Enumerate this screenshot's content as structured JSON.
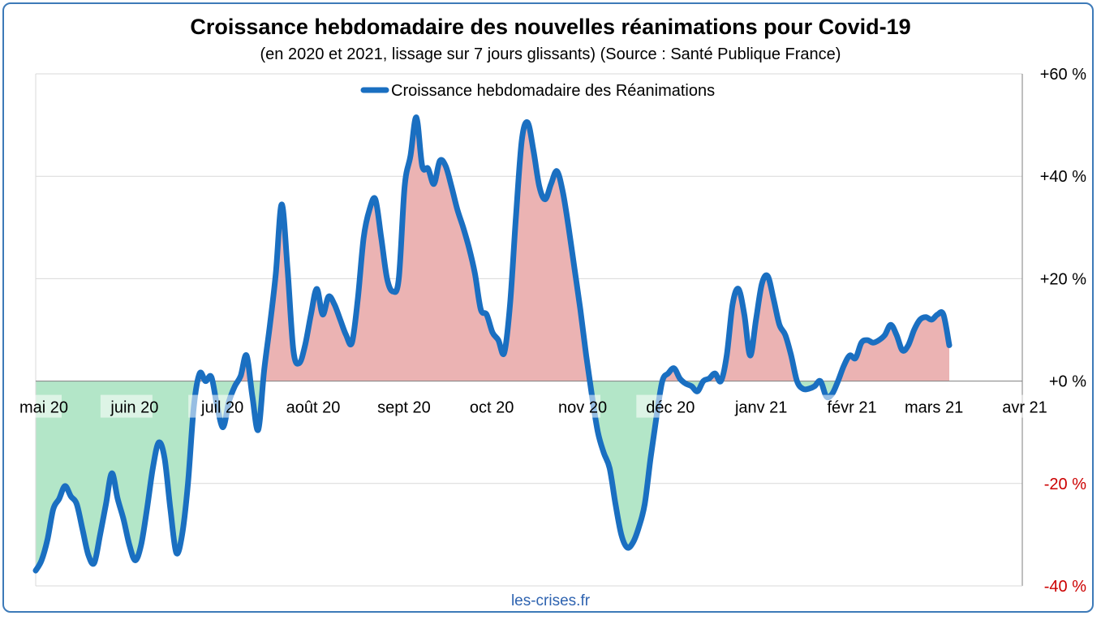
{
  "chart_data": {
    "type": "area",
    "title": "Croissance hebdomadaire des nouvelles réanimations pour Covid-19",
    "subtitle": "(en 2020 et 2021, lissage sur 7 jours glissants) (Source : Santé Publique France)",
    "xlabel": "",
    "ylabel": "",
    "ylim": [
      -40,
      60
    ],
    "y_ticks": [
      {
        "value": 60,
        "label": "+60 %"
      },
      {
        "value": 40,
        "label": "+40 %"
      },
      {
        "value": 20,
        "label": "+20 %"
      },
      {
        "value": 0,
        "label": "+0 %"
      },
      {
        "value": -20,
        "label": "-20 %"
      },
      {
        "value": -40,
        "label": "-40 %"
      }
    ],
    "x_ticks": [
      {
        "date": "2020-05-01",
        "label": "mai 20"
      },
      {
        "date": "2020-06-01",
        "label": "juin 20"
      },
      {
        "date": "2020-07-01",
        "label": "juil 20"
      },
      {
        "date": "2020-08-01",
        "label": "août 20"
      },
      {
        "date": "2020-09-01",
        "label": "sept 20"
      },
      {
        "date": "2020-10-01",
        "label": "oct 20"
      },
      {
        "date": "2020-11-01",
        "label": "nov 20"
      },
      {
        "date": "2020-12-01",
        "label": "déc 20"
      },
      {
        "date": "2021-01-01",
        "label": "janv 21"
      },
      {
        "date": "2021-02-01",
        "label": "févr 21"
      },
      {
        "date": "2021-03-01",
        "label": "mars 21"
      },
      {
        "date": "2021-04-01",
        "label": "avr 21"
      }
    ],
    "x_range": [
      "2020-05-01",
      "2021-04-01"
    ],
    "grid": "horizontal",
    "legend_position": "top-center",
    "colors": {
      "line": "#1a6fc1",
      "positive_fill": "#ebb3b3",
      "negative_fill": "#b3e6c8",
      "negative_tick": "#cc0000",
      "grid": "#d9d9d9"
    },
    "series": [
      {
        "name": "Croissance hebdomadaire des Réanimations",
        "points": [
          [
            "2020-05-01",
            -37
          ],
          [
            "2020-05-03",
            -35
          ],
          [
            "2020-05-05",
            -31
          ],
          [
            "2020-05-07",
            -25
          ],
          [
            "2020-05-09",
            -23
          ],
          [
            "2020-05-11",
            -20.5
          ],
          [
            "2020-05-13",
            -22.5
          ],
          [
            "2020-05-15",
            -24
          ],
          [
            "2020-05-17",
            -29
          ],
          [
            "2020-05-19",
            -34
          ],
          [
            "2020-05-21",
            -35.5
          ],
          [
            "2020-05-23",
            -30
          ],
          [
            "2020-05-25",
            -24
          ],
          [
            "2020-05-27",
            -18
          ],
          [
            "2020-05-29",
            -23
          ],
          [
            "2020-05-31",
            -27
          ],
          [
            "2020-06-02",
            -32
          ],
          [
            "2020-06-04",
            -35
          ],
          [
            "2020-06-06",
            -32
          ],
          [
            "2020-06-08",
            -25
          ],
          [
            "2020-06-10",
            -17
          ],
          [
            "2020-06-12",
            -12
          ],
          [
            "2020-06-14",
            -15
          ],
          [
            "2020-06-16",
            -25
          ],
          [
            "2020-06-18",
            -33.5
          ],
          [
            "2020-06-20",
            -30
          ],
          [
            "2020-06-22",
            -20
          ],
          [
            "2020-06-24",
            -5
          ],
          [
            "2020-06-26",
            1.5
          ],
          [
            "2020-06-28",
            0
          ],
          [
            "2020-06-30",
            0.8
          ],
          [
            "2020-07-02",
            -5
          ],
          [
            "2020-07-04",
            -9
          ],
          [
            "2020-07-06",
            -4
          ],
          [
            "2020-07-08",
            -1
          ],
          [
            "2020-07-10",
            1
          ],
          [
            "2020-07-12",
            5
          ],
          [
            "2020-07-14",
            -3
          ],
          [
            "2020-07-16",
            -9.5
          ],
          [
            "2020-07-18",
            2
          ],
          [
            "2020-07-20",
            11
          ],
          [
            "2020-07-22",
            21
          ],
          [
            "2020-07-24",
            34.5
          ],
          [
            "2020-07-26",
            22
          ],
          [
            "2020-07-28",
            6
          ],
          [
            "2020-07-30",
            3.5
          ],
          [
            "2020-08-01",
            7
          ],
          [
            "2020-08-03",
            13
          ],
          [
            "2020-08-05",
            18
          ],
          [
            "2020-08-07",
            13
          ],
          [
            "2020-08-09",
            16.5
          ],
          [
            "2020-08-11",
            15
          ],
          [
            "2020-08-13",
            12
          ],
          [
            "2020-08-15",
            9
          ],
          [
            "2020-08-17",
            7.5
          ],
          [
            "2020-08-19",
            16
          ],
          [
            "2020-08-21",
            28
          ],
          [
            "2020-08-23",
            33.5
          ],
          [
            "2020-08-25",
            35.5
          ],
          [
            "2020-08-27",
            28
          ],
          [
            "2020-08-29",
            20
          ],
          [
            "2020-08-31",
            17.5
          ],
          [
            "2020-09-02",
            20
          ],
          [
            "2020-09-04",
            38
          ],
          [
            "2020-09-06",
            44
          ],
          [
            "2020-09-08",
            51.5
          ],
          [
            "2020-09-10",
            42
          ],
          [
            "2020-09-12",
            41.5
          ],
          [
            "2020-09-14",
            38.5
          ],
          [
            "2020-09-16",
            43
          ],
          [
            "2020-09-18",
            42
          ],
          [
            "2020-09-20",
            38
          ],
          [
            "2020-09-22",
            33.5
          ],
          [
            "2020-09-24",
            30
          ],
          [
            "2020-09-26",
            26
          ],
          [
            "2020-09-28",
            21
          ],
          [
            "2020-09-30",
            14
          ],
          [
            "2020-10-02",
            13
          ],
          [
            "2020-10-04",
            9.5
          ],
          [
            "2020-10-06",
            8
          ],
          [
            "2020-10-08",
            5.5
          ],
          [
            "2020-10-10",
            15
          ],
          [
            "2020-10-12",
            32
          ],
          [
            "2020-10-14",
            47
          ],
          [
            "2020-10-16",
            50.5
          ],
          [
            "2020-10-18",
            45
          ],
          [
            "2020-10-20",
            38
          ],
          [
            "2020-10-22",
            35.5
          ],
          [
            "2020-10-24",
            38.5
          ],
          [
            "2020-10-26",
            41
          ],
          [
            "2020-10-28",
            37
          ],
          [
            "2020-10-30",
            30
          ],
          [
            "2020-11-01",
            22
          ],
          [
            "2020-11-03",
            14
          ],
          [
            "2020-11-05",
            5
          ],
          [
            "2020-11-07",
            -3
          ],
          [
            "2020-11-09",
            -10
          ],
          [
            "2020-11-11",
            -14
          ],
          [
            "2020-11-13",
            -17
          ],
          [
            "2020-11-15",
            -24
          ],
          [
            "2020-11-17",
            -30
          ],
          [
            "2020-11-19",
            -32.5
          ],
          [
            "2020-11-21",
            -31.5
          ],
          [
            "2020-11-23",
            -28.5
          ],
          [
            "2020-11-25",
            -24
          ],
          [
            "2020-11-27",
            -15
          ],
          [
            "2020-11-29",
            -7
          ],
          [
            "2020-12-01",
            0
          ],
          [
            "2020-12-03",
            1.5
          ],
          [
            "2020-12-05",
            2.5
          ],
          [
            "2020-12-07",
            0.5
          ],
          [
            "2020-12-09",
            -0.5
          ],
          [
            "2020-12-11",
            -1
          ],
          [
            "2020-12-13",
            -2
          ],
          [
            "2020-12-15",
            0
          ],
          [
            "2020-12-17",
            0.5
          ],
          [
            "2020-12-19",
            1.5
          ],
          [
            "2020-12-21",
            0
          ],
          [
            "2020-12-23",
            5
          ],
          [
            "2020-12-25",
            15
          ],
          [
            "2020-12-27",
            18
          ],
          [
            "2020-12-29",
            13
          ],
          [
            "2020-12-31",
            5
          ],
          [
            "2021-01-02",
            12
          ],
          [
            "2021-01-04",
            19
          ],
          [
            "2021-01-06",
            20.5
          ],
          [
            "2021-01-08",
            16
          ],
          [
            "2021-01-10",
            11
          ],
          [
            "2021-01-12",
            9
          ],
          [
            "2021-01-14",
            5
          ],
          [
            "2021-01-16",
            0
          ],
          [
            "2021-01-18",
            -1.5
          ],
          [
            "2021-01-20",
            -1.5
          ],
          [
            "2021-01-22",
            -1
          ],
          [
            "2021-01-24",
            0
          ],
          [
            "2021-01-26",
            -3
          ],
          [
            "2021-01-28",
            -2.5
          ],
          [
            "2021-01-30",
            0
          ],
          [
            "2021-02-01",
            3
          ],
          [
            "2021-02-03",
            5
          ],
          [
            "2021-02-05",
            4.5
          ],
          [
            "2021-02-07",
            7.5
          ],
          [
            "2021-02-09",
            8
          ],
          [
            "2021-02-11",
            7.5
          ],
          [
            "2021-02-13",
            8
          ],
          [
            "2021-02-15",
            9
          ],
          [
            "2021-02-17",
            11
          ],
          [
            "2021-02-19",
            9
          ],
          [
            "2021-02-21",
            6
          ],
          [
            "2021-02-23",
            7
          ],
          [
            "2021-02-25",
            10
          ],
          [
            "2021-02-27",
            12
          ],
          [
            "2021-03-01",
            12.5
          ],
          [
            "2021-03-03",
            12
          ],
          [
            "2021-03-05",
            13
          ],
          [
            "2021-03-07",
            13
          ],
          [
            "2021-03-09",
            7
          ]
        ]
      }
    ],
    "source": "les-crises.fr"
  }
}
